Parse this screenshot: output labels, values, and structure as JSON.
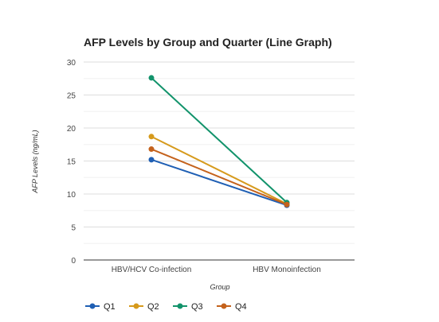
{
  "chart_data": {
    "type": "line",
    "title": "AFP Levels by Group and Quarter (Line Graph)",
    "xlabel": "Group",
    "ylabel": "AFP Levels (ng/mL)",
    "categories": [
      "HBV/HCV Co-infection",
      "HBV Monoinfection"
    ],
    "ylim": [
      0,
      30
    ],
    "yticks": [
      0,
      5,
      10,
      15,
      20,
      25,
      30
    ],
    "grid": true,
    "legend_position": "bottom-left",
    "series": [
      {
        "name": "Q1",
        "color": "#1f5fb4",
        "values": [
          15.2,
          8.3
        ]
      },
      {
        "name": "Q2",
        "color": "#d69a1c",
        "values": [
          18.7,
          8.5
        ]
      },
      {
        "name": "Q3",
        "color": "#12936b",
        "values": [
          27.6,
          8.7
        ]
      },
      {
        "name": "Q4",
        "color": "#c4621c",
        "values": [
          16.8,
          8.4
        ]
      }
    ]
  }
}
